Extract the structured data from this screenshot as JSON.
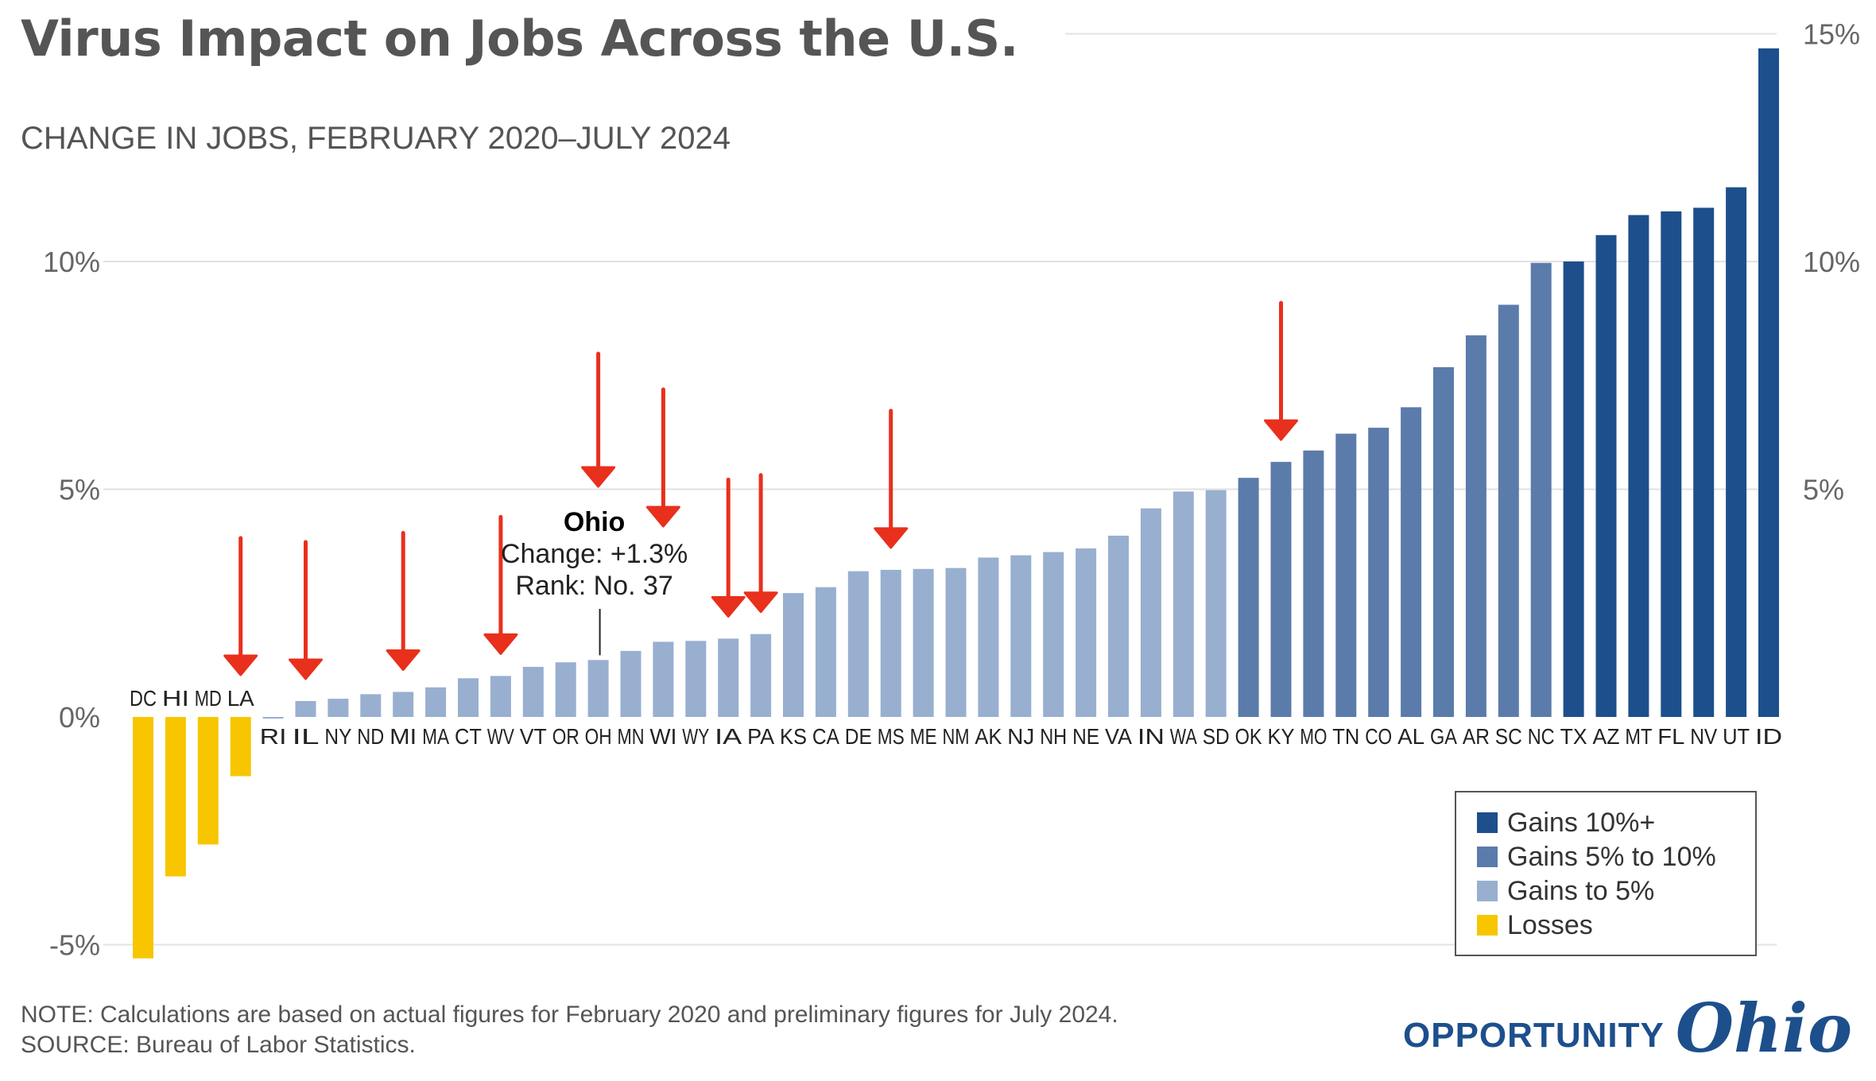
{
  "title": "Virus Impact on Jobs Across the U.S.",
  "subtitle": "CHANGE IN JOBS, FEBRUARY 2020–JULY 2024",
  "note": "NOTE: Calculations are based on actual figures for February 2020 and preliminary figures for July 2024.",
  "source": "SOURCE: Bureau of Labor Statistics.",
  "logo": {
    "text": "OPPORTUNITY",
    "script": "Ohio"
  },
  "legend": [
    {
      "label": "Gains 10%+",
      "color": "#1d4f8c"
    },
    {
      "label": "Gains 5% to 10%",
      "color": "#5b7bab"
    },
    {
      "label": "Gains to 5%",
      "color": "#98afcf"
    },
    {
      "label": "Losses",
      "color": "#f7c600"
    }
  ],
  "annotation": {
    "title": "Ohio",
    "line1": "Change: +1.3%",
    "line2": "Rank: No. 37"
  },
  "chart_data": {
    "type": "bar",
    "categories": [
      "DC",
      "HI",
      "MD",
      "LA",
      "RI",
      "IL",
      "NY",
      "ND",
      "MI",
      "MA",
      "CT",
      "WV",
      "VT",
      "OR",
      "OH",
      "MN",
      "WI",
      "WY",
      "IA",
      "PA",
      "KS",
      "CA",
      "DE",
      "MS",
      "ME",
      "NM",
      "AK",
      "NJ",
      "NH",
      "NE",
      "VA",
      "IN",
      "WA",
      "SD",
      "OK",
      "KY",
      "MO",
      "TN",
      "CO",
      "AL",
      "GA",
      "AR",
      "SC",
      "NC",
      "TX",
      "AZ",
      "MT",
      "FL",
      "NV",
      "UT",
      "ID"
    ],
    "values": [
      -5.3,
      -3.5,
      -2.8,
      -1.3,
      0.0,
      0.35,
      0.4,
      0.5,
      0.55,
      0.65,
      0.85,
      0.9,
      1.1,
      1.2,
      1.25,
      1.45,
      1.65,
      1.67,
      1.72,
      1.82,
      2.72,
      2.85,
      3.2,
      3.23,
      3.25,
      3.27,
      3.5,
      3.55,
      3.62,
      3.7,
      3.98,
      4.58,
      4.95,
      4.98,
      5.25,
      5.6,
      5.85,
      6.22,
      6.35,
      6.8,
      7.68,
      8.38,
      9.05,
      9.97,
      10.0,
      10.58,
      11.02,
      11.1,
      11.18,
      11.63,
      14.68
    ],
    "groups": [
      "loss",
      "loss",
      "loss",
      "loss",
      "low",
      "low",
      "low",
      "low",
      "low",
      "low",
      "low",
      "low",
      "low",
      "low",
      "low",
      "low",
      "low",
      "low",
      "low",
      "low",
      "low",
      "low",
      "low",
      "low",
      "low",
      "low",
      "low",
      "low",
      "low",
      "low",
      "low",
      "low",
      "low",
      "low",
      "mid",
      "mid",
      "mid",
      "mid",
      "mid",
      "mid",
      "mid",
      "mid",
      "mid",
      "mid",
      "high",
      "high",
      "high",
      "high",
      "high",
      "high",
      "high"
    ],
    "group_colors": {
      "loss": "#f7c600",
      "low": "#98afcf",
      "mid": "#5b7bab",
      "high": "#1d4f8c"
    },
    "highlighted": [
      "LA",
      "IL",
      "MI",
      "WV",
      "OH",
      "WI",
      "IA",
      "PA",
      "MS",
      "KY"
    ],
    "yticks_left": [
      "-5%",
      "0%",
      "5%",
      "10%"
    ],
    "yticks_left_values": [
      -5,
      0,
      5,
      10
    ],
    "yticks_right": [
      "5%",
      "10%",
      "15%"
    ],
    "yticks_right_values": [
      5,
      10,
      15
    ],
    "ylim": [
      -5.4,
      15
    ],
    "xlabel": "",
    "ylabel": "",
    "grid": true
  }
}
